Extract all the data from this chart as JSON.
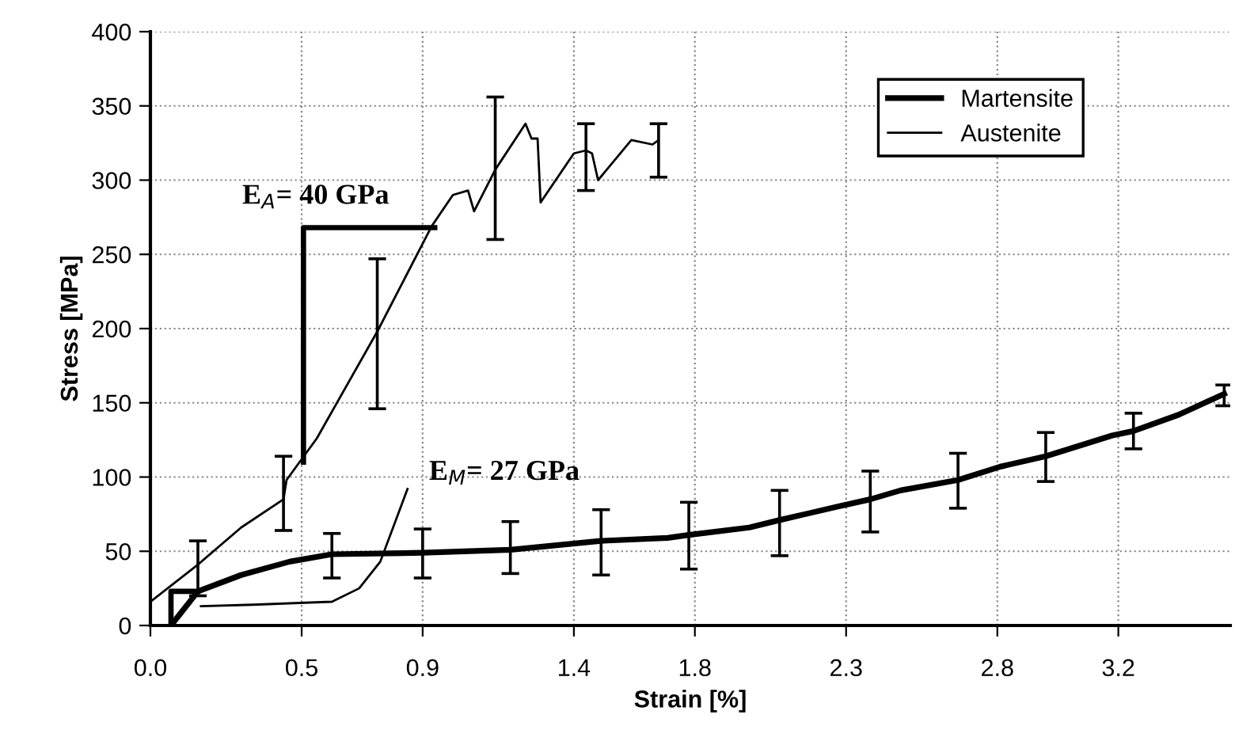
{
  "chart_data": {
    "type": "line",
    "xlabel": "Strain [%]",
    "ylabel": "Stress [MPa]",
    "xlim": [
      0,
      3.57
    ],
    "ylim": [
      0,
      400
    ],
    "xticks": [
      {
        "value": 0,
        "label": "0.0"
      },
      0.5,
      0.9,
      1.4,
      1.8,
      2.3,
      2.8,
      3.2
    ],
    "yticks": [
      0,
      50,
      100,
      150,
      200,
      250,
      300,
      350,
      400
    ],
    "grid": true,
    "legend": "top right",
    "line_style": "solid",
    "series": [
      {
        "name": "Martensite",
        "color": "#000000",
        "x": [
          0.068,
          0.157,
          0.3,
          0.46,
          0.6,
          0.9,
          1.19,
          1.49,
          1.71,
          1.78,
          1.98,
          2.08,
          2.27,
          2.38,
          2.48,
          2.67,
          2.81,
          2.96,
          3.18,
          3.25,
          3.4,
          3.55
        ],
        "values": [
          0,
          23,
          34,
          43,
          48,
          49,
          51,
          57,
          59,
          61,
          66,
          71,
          80,
          85,
          91,
          98,
          107,
          114,
          128,
          131,
          142,
          156
        ],
        "errors": [
          null,
          null,
          null,
          null,
          [
            32,
            62
          ],
          [
            32,
            65
          ],
          [
            35,
            70
          ],
          [
            34,
            78
          ],
          null,
          [
            38,
            83
          ],
          null,
          [
            47,
            91
          ],
          null,
          [
            63,
            104
          ],
          null,
          [
            79,
            116
          ],
          null,
          [
            97,
            130
          ],
          null,
          [
            119,
            143
          ],
          null,
          [
            148,
            162
          ]
        ]
      },
      {
        "name": "Austenite",
        "color": "#000000",
        "x": [
          0,
          0.157,
          0.3,
          0.44,
          0.45,
          0.55,
          0.75,
          0.93,
          1.0,
          1.05,
          1.07,
          1.14,
          1.24,
          1.26,
          1.28,
          1.29,
          1.4,
          1.44,
          1.46,
          1.48,
          1.59,
          1.66,
          1.68
        ],
        "values": [
          16,
          41,
          66,
          85,
          98,
          126,
          198,
          269,
          290,
          293,
          279,
          307,
          338,
          328,
          328,
          285,
          318,
          320,
          318,
          300,
          327,
          324,
          327
        ],
        "errors": [
          null,
          [
            20,
            57
          ],
          null,
          [
            64,
            114
          ],
          null,
          null,
          [
            146,
            247
          ],
          null,
          null,
          null,
          null,
          [
            260,
            356
          ],
          null,
          null,
          null,
          null,
          null,
          [
            293,
            338
          ],
          null,
          null,
          null,
          null,
          [
            302,
            338
          ]
        ]
      },
      {
        "color": "#000000",
        "x": [
          0.167,
          0.34,
          0.6,
          0.69,
          0.76,
          0.85
        ],
        "values": [
          13,
          14,
          16,
          25,
          43,
          92
        ]
      },
      {
        "color": "#000000",
        "x": [
          0.506,
          0.506,
          0.94
        ],
        "values": [
          110,
          268,
          268
        ]
      },
      {
        "color": "#000000",
        "x": [
          0.068,
          0.068,
          0.157
        ],
        "values": [
          0,
          23,
          23
        ]
      }
    ],
    "annotations": [
      "E$_{A}$= 40 GPa",
      "E$_{M}$= 27 GPa"
    ]
  }
}
